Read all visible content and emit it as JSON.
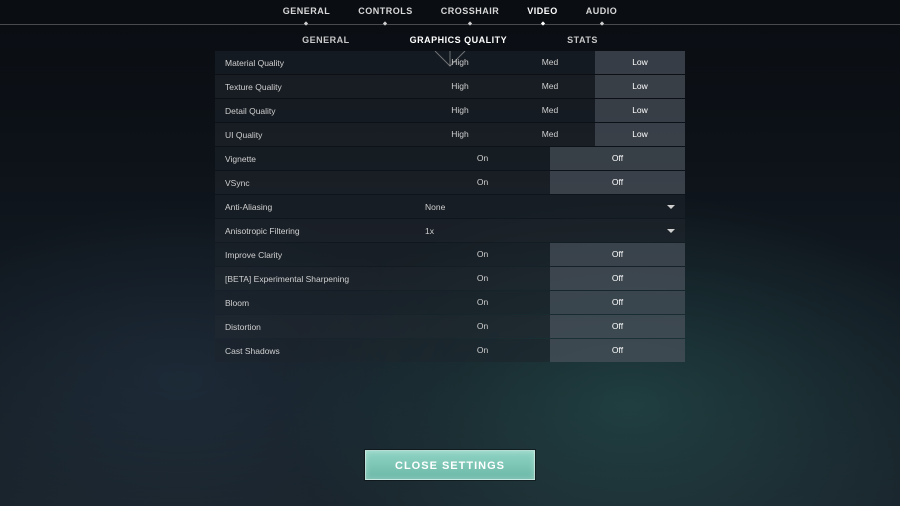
{
  "topTabs": {
    "items": [
      "GENERAL",
      "CONTROLS",
      "CROSSHAIR",
      "VIDEO",
      "AUDIO"
    ],
    "activeIndex": 3
  },
  "subTabs": {
    "items": [
      "GENERAL",
      "GRAPHICS QUALITY",
      "STATS"
    ],
    "activeIndex": 1
  },
  "options3": [
    "High",
    "Med",
    "Low"
  ],
  "options2": [
    "On",
    "Off"
  ],
  "rows": [
    {
      "type": "tri",
      "label": "Material Quality",
      "selected": 2
    },
    {
      "type": "tri",
      "label": "Texture Quality",
      "selected": 2
    },
    {
      "type": "tri",
      "label": "Detail Quality",
      "selected": 2
    },
    {
      "type": "tri",
      "label": "UI Quality",
      "selected": 2
    },
    {
      "type": "bi",
      "label": "Vignette",
      "selected": 1
    },
    {
      "type": "bi",
      "label": "VSync",
      "selected": 1
    },
    {
      "type": "drop",
      "label": "Anti-Aliasing",
      "value": "None"
    },
    {
      "type": "drop",
      "label": "Anisotropic Filtering",
      "value": "1x"
    },
    {
      "type": "bi",
      "label": "Improve Clarity",
      "selected": 1
    },
    {
      "type": "bi",
      "label": "[BETA] Experimental Sharpening",
      "selected": 1
    },
    {
      "type": "bi",
      "label": "Bloom",
      "selected": 1
    },
    {
      "type": "bi",
      "label": "Distortion",
      "selected": 1
    },
    {
      "type": "bi",
      "label": "Cast Shadows",
      "selected": 1
    }
  ],
  "closeButton": "CLOSE SETTINGS",
  "colors": {
    "buttonGradientTop": "#8fd4c4",
    "buttonGradientBottom": "#6bb8a8",
    "selectedBg": "rgba(120,130,140,0.35)",
    "rowBgA": "rgba(30,36,44,0.55)",
    "rowBgB": "rgba(34,40,48,0.55)"
  }
}
